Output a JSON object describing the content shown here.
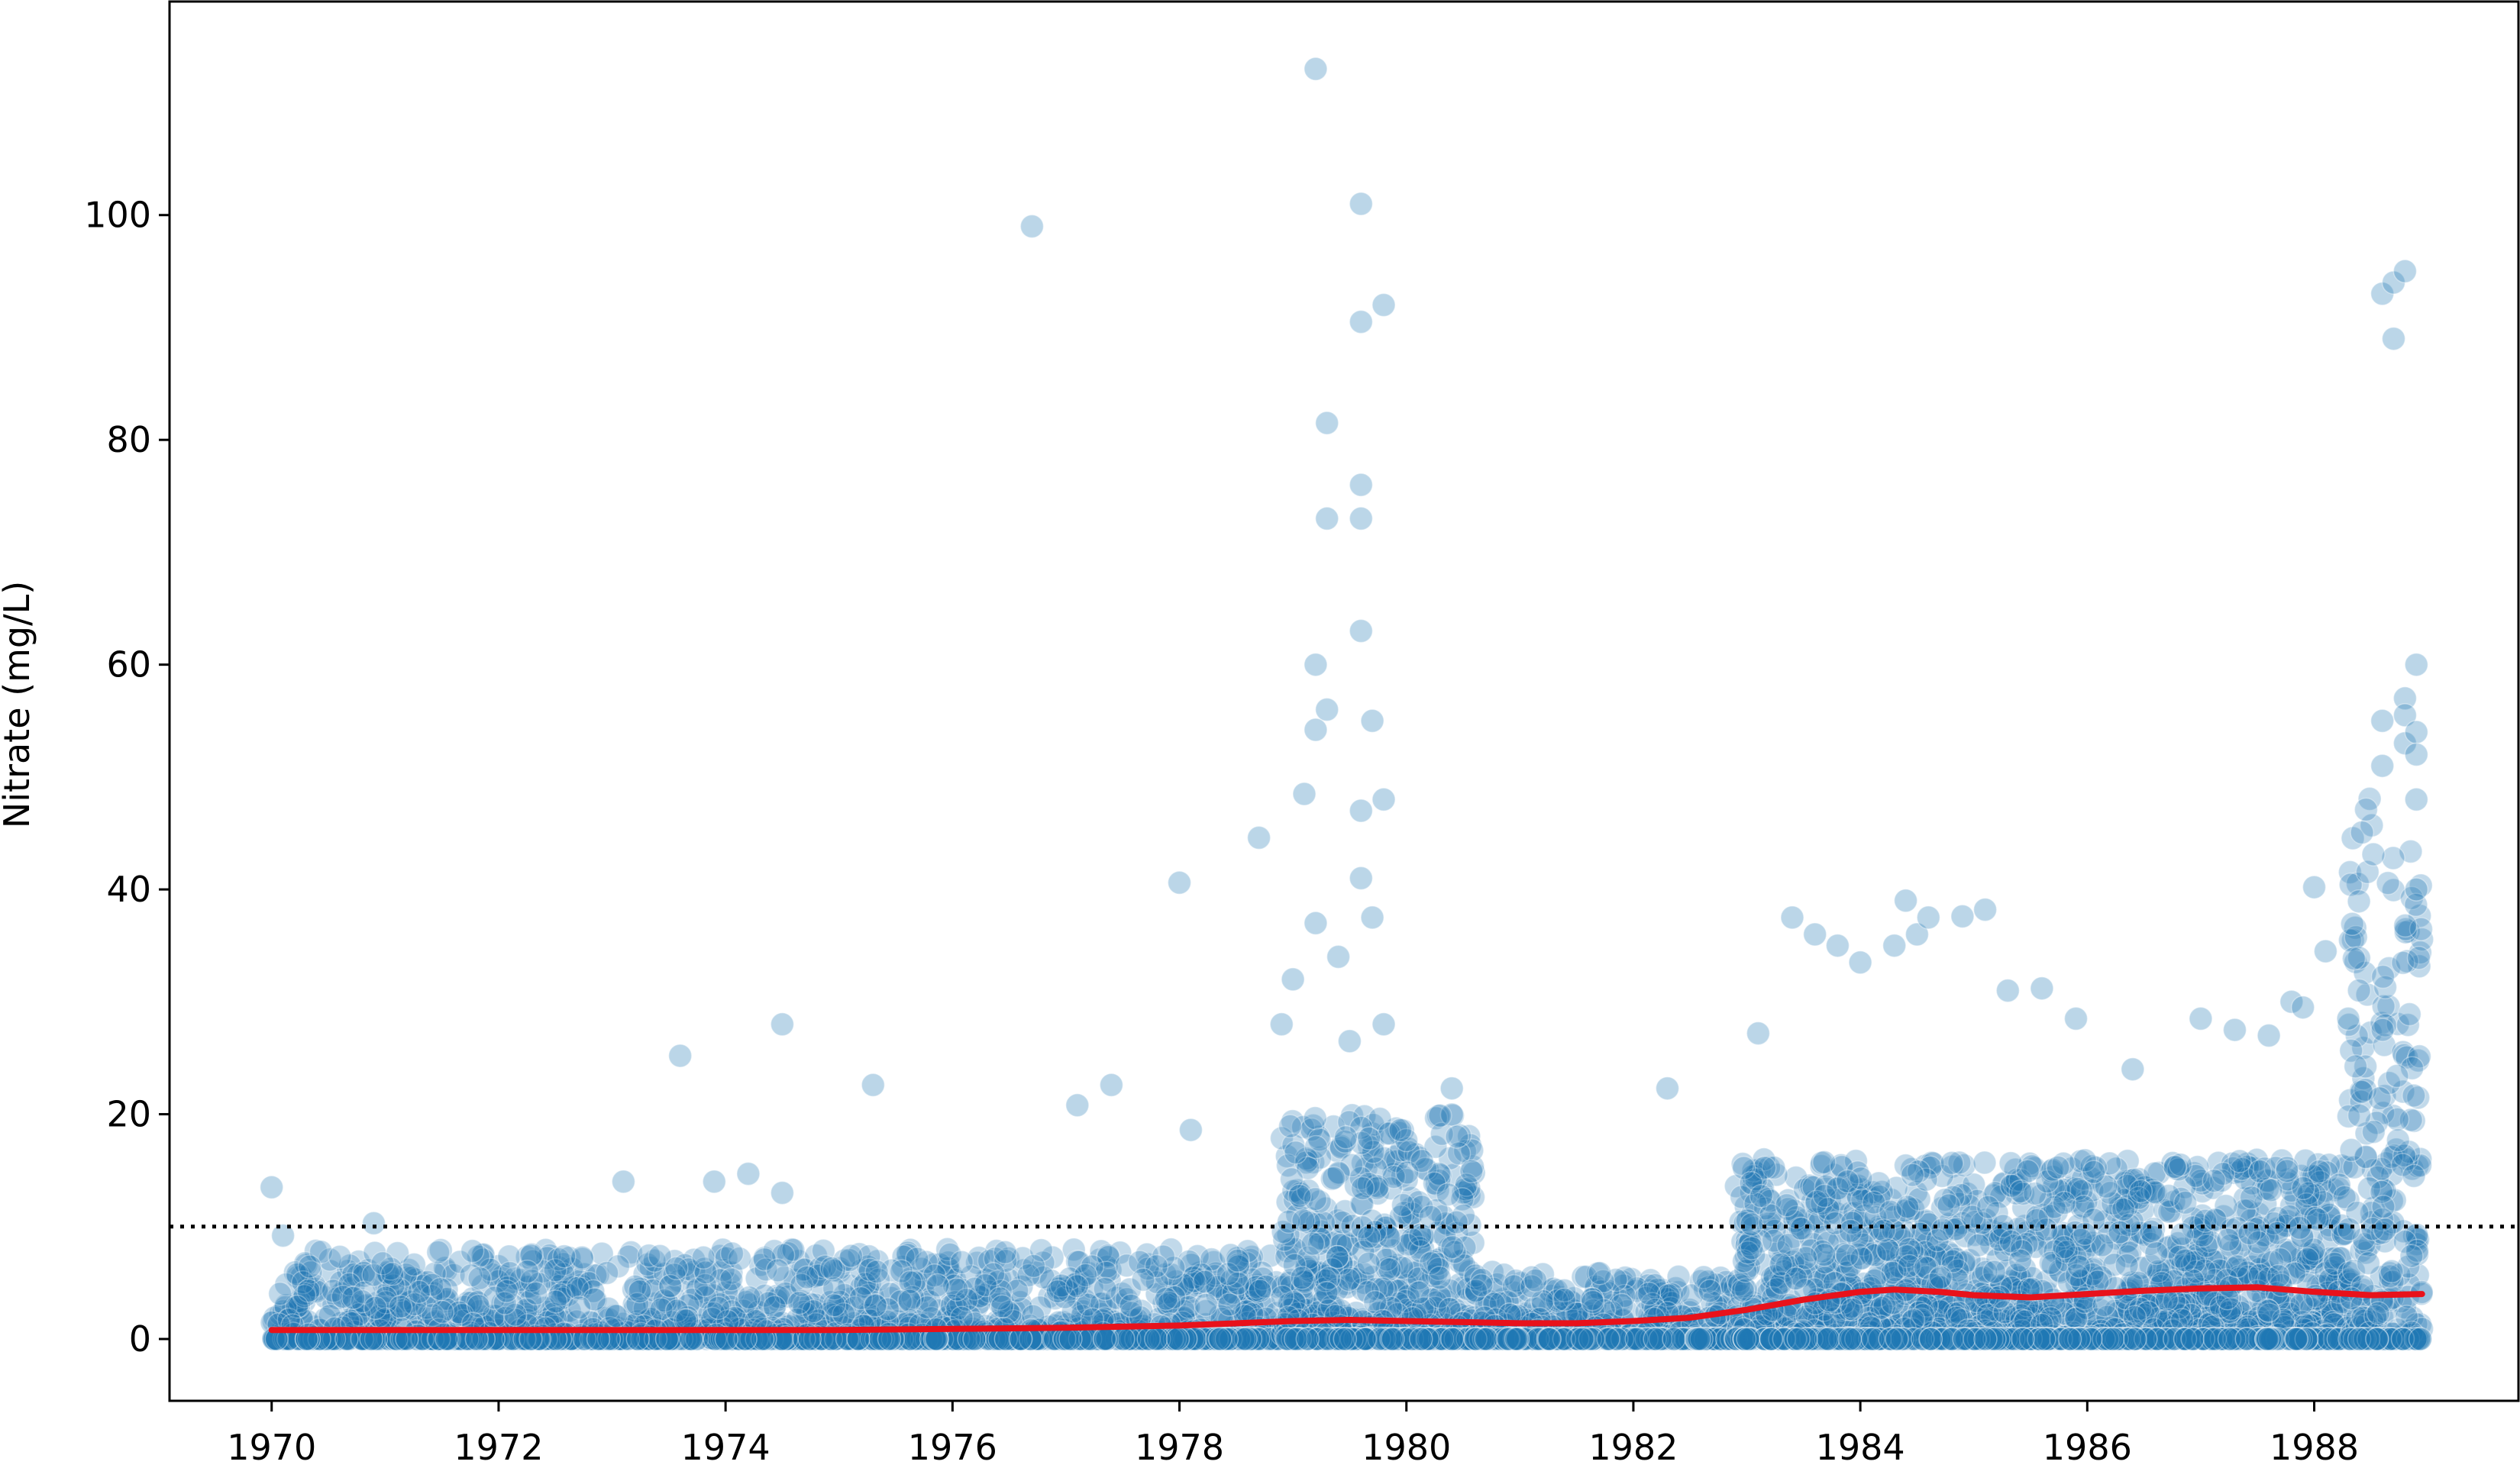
{
  "chart_data": {
    "type": "scatter",
    "title": "",
    "xlabel": "",
    "ylabel": "Nitrate (mg/L)",
    "xlim": [
      1969.1,
      1989.8
    ],
    "ylim": [
      -5.5,
      119
    ],
    "xticks": [
      1970,
      1972,
      1974,
      1976,
      1978,
      1980,
      1982,
      1984,
      1986,
      1988
    ],
    "yticks": [
      0,
      20,
      40,
      60,
      80,
      100
    ],
    "grid": false,
    "legend": "none",
    "colors": {
      "points": "#1f77b4",
      "trend": "#e8121b",
      "reference_line": "#000000"
    },
    "reference_line": {
      "y": 10,
      "style": "dotted"
    },
    "notable_points": [
      {
        "x": 1970.0,
        "y": 13.5
      },
      {
        "x": 1970.1,
        "y": 9.2
      },
      {
        "x": 1970.9,
        "y": 10.3
      },
      {
        "x": 1973.1,
        "y": 14.0
      },
      {
        "x": 1973.6,
        "y": 25.2
      },
      {
        "x": 1973.9,
        "y": 14.0
      },
      {
        "x": 1974.2,
        "y": 14.7
      },
      {
        "x": 1974.5,
        "y": 28.0
      },
      {
        "x": 1974.5,
        "y": 13.0
      },
      {
        "x": 1975.3,
        "y": 22.6
      },
      {
        "x": 1976.7,
        "y": 99.0
      },
      {
        "x": 1977.1,
        "y": 20.8
      },
      {
        "x": 1977.4,
        "y": 22.6
      },
      {
        "x": 1978.0,
        "y": 40.6
      },
      {
        "x": 1978.1,
        "y": 18.6
      },
      {
        "x": 1978.7,
        "y": 44.6
      },
      {
        "x": 1978.9,
        "y": 28.0
      },
      {
        "x": 1979.0,
        "y": 32.0
      },
      {
        "x": 1979.1,
        "y": 48.5
      },
      {
        "x": 1979.2,
        "y": 113.0
      },
      {
        "x": 1979.2,
        "y": 60.0
      },
      {
        "x": 1979.2,
        "y": 54.2
      },
      {
        "x": 1979.2,
        "y": 37.0
      },
      {
        "x": 1979.3,
        "y": 81.5
      },
      {
        "x": 1979.3,
        "y": 73.0
      },
      {
        "x": 1979.3,
        "y": 56.0
      },
      {
        "x": 1979.4,
        "y": 34.0
      },
      {
        "x": 1979.5,
        "y": 26.5
      },
      {
        "x": 1979.6,
        "y": 73.0
      },
      {
        "x": 1979.6,
        "y": 101.0
      },
      {
        "x": 1979.6,
        "y": 90.5
      },
      {
        "x": 1979.6,
        "y": 76.0
      },
      {
        "x": 1979.6,
        "y": 63.0
      },
      {
        "x": 1979.6,
        "y": 47.0
      },
      {
        "x": 1979.6,
        "y": 41.0
      },
      {
        "x": 1979.7,
        "y": 55.0
      },
      {
        "x": 1979.7,
        "y": 37.5
      },
      {
        "x": 1979.8,
        "y": 92.0
      },
      {
        "x": 1979.8,
        "y": 48.0
      },
      {
        "x": 1979.8,
        "y": 28.0
      },
      {
        "x": 1980.4,
        "y": 22.3
      },
      {
        "x": 1982.3,
        "y": 22.3
      },
      {
        "x": 1983.1,
        "y": 27.2
      },
      {
        "x": 1983.4,
        "y": 37.5
      },
      {
        "x": 1983.6,
        "y": 36.0
      },
      {
        "x": 1983.8,
        "y": 35.0
      },
      {
        "x": 1984.0,
        "y": 33.5
      },
      {
        "x": 1984.3,
        "y": 35.0
      },
      {
        "x": 1984.4,
        "y": 39.0
      },
      {
        "x": 1984.5,
        "y": 36.0
      },
      {
        "x": 1984.6,
        "y": 37.5
      },
      {
        "x": 1984.9,
        "y": 37.6
      },
      {
        "x": 1985.1,
        "y": 38.2
      },
      {
        "x": 1985.3,
        "y": 31.0
      },
      {
        "x": 1985.6,
        "y": 31.2
      },
      {
        "x": 1985.9,
        "y": 28.5
      },
      {
        "x": 1986.4,
        "y": 24.0
      },
      {
        "x": 1987.0,
        "y": 28.5
      },
      {
        "x": 1987.3,
        "y": 27.5
      },
      {
        "x": 1987.6,
        "y": 27.0
      },
      {
        "x": 1987.8,
        "y": 30.0
      },
      {
        "x": 1987.9,
        "y": 29.5
      },
      {
        "x": 1988.0,
        "y": 40.2
      },
      {
        "x": 1988.1,
        "y": 34.5
      },
      {
        "x": 1988.3,
        "y": 28.5
      },
      {
        "x": 1988.6,
        "y": 93.0
      },
      {
        "x": 1988.6,
        "y": 55.0
      },
      {
        "x": 1988.6,
        "y": 51.0
      },
      {
        "x": 1988.7,
        "y": 94.0
      },
      {
        "x": 1988.7,
        "y": 89.0
      },
      {
        "x": 1988.8,
        "y": 95.0
      },
      {
        "x": 1988.8,
        "y": 57.0
      },
      {
        "x": 1988.8,
        "y": 55.5
      },
      {
        "x": 1988.8,
        "y": 53.0
      },
      {
        "x": 1988.9,
        "y": 60.0
      },
      {
        "x": 1988.9,
        "y": 54.0
      },
      {
        "x": 1988.9,
        "y": 52.0
      },
      {
        "x": 1988.9,
        "y": 48.0
      },
      {
        "x": 1988.9,
        "y": 40.0
      }
    ],
    "bulk_ranges": [
      {
        "x0": 1970.0,
        "x1": 1978.9,
        "ymax": 8
      },
      {
        "x0": 1978.9,
        "x1": 1980.6,
        "ymax": 20
      },
      {
        "x0": 1980.6,
        "x1": 1982.9,
        "ymax": 6
      },
      {
        "x0": 1982.9,
        "x1": 1988.3,
        "ymax": 16
      },
      {
        "x0": 1988.3,
        "x1": 1988.95,
        "ymax": 50
      }
    ],
    "trend_line": {
      "x": [
        1970,
        1971,
        1972,
        1973,
        1974,
        1975,
        1976,
        1977,
        1978,
        1979,
        1979.5,
        1980,
        1980.5,
        1981,
        1981.5,
        1982,
        1982.5,
        1983,
        1983.5,
        1984,
        1984.3,
        1984.7,
        1985,
        1985.5,
        1986,
        1986.5,
        1987,
        1987.5,
        1988,
        1988.5,
        1988.95
      ],
      "y": [
        0.8,
        0.8,
        0.8,
        0.8,
        0.8,
        0.8,
        0.9,
        1.0,
        1.2,
        1.6,
        1.7,
        1.6,
        1.5,
        1.4,
        1.4,
        1.6,
        1.9,
        2.6,
        3.5,
        4.2,
        4.4,
        4.2,
        3.9,
        3.7,
        4.0,
        4.3,
        4.5,
        4.6,
        4.2,
        3.9,
        4.0
      ]
    }
  }
}
